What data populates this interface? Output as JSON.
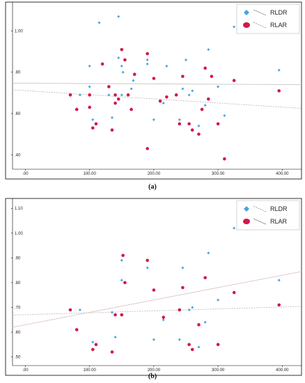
{
  "captions": {
    "a": "(a)",
    "b": "(b)"
  },
  "chart_data": [
    {
      "type": "scatter",
      "title": "",
      "xlabel": "",
      "ylabel": "",
      "xlim": [
        -20,
        430
      ],
      "ylim": [
        0.33,
        1.14
      ],
      "xticks": [
        ".00",
        "100.00",
        "200.00",
        "300.00",
        "400.00"
      ],
      "xtick_values": [
        0,
        100,
        200,
        300,
        400
      ],
      "yticks": [
        ".40",
        ".60",
        ".80",
        "1.00"
      ],
      "ytick_values": [
        0.4,
        0.6,
        0.8,
        1.0
      ],
      "legend": {
        "position": "top-right"
      },
      "series": [
        {
          "name": "RLDR",
          "color": "#4aa3df",
          "marker": "diamond",
          "fit": {
            "y0": 0.747,
            "y430": 0.74,
            "style": "solid",
            "color": "#c9c9c9"
          },
          "points": [
            [
              70,
              0.69
            ],
            [
              85,
              0.69
            ],
            [
              100,
              0.73
            ],
            [
              100,
              0.83
            ],
            [
              105,
              0.57
            ],
            [
              115,
              1.04
            ],
            [
              130,
              0.69
            ],
            [
              135,
              0.58
            ],
            [
              145,
              1.07
            ],
            [
              145,
              0.87
            ],
            [
              150,
              0.69
            ],
            [
              150,
              0.83
            ],
            [
              152,
              0.8
            ],
            [
              165,
              0.72
            ],
            [
              168,
              0.76
            ],
            [
              190,
              0.86
            ],
            [
              190,
              0.84
            ],
            [
              200,
              0.57
            ],
            [
              215,
              0.65
            ],
            [
              220,
              0.83
            ],
            [
              240,
              0.57
            ],
            [
              245,
              0.72
            ],
            [
              250,
              0.86
            ],
            [
              255,
              0.69
            ],
            [
              260,
              0.71
            ],
            [
              270,
              0.54
            ],
            [
              280,
              0.64
            ],
            [
              285,
              0.91
            ],
            [
              300,
              0.73
            ],
            [
              310,
              0.59
            ],
            [
              325,
              1.02
            ],
            [
              395,
              0.81
            ]
          ]
        },
        {
          "name": "RLAR",
          "color": "#d4174a",
          "marker": "circle",
          "fit": {
            "y0": 0.715,
            "y430": 0.625,
            "style": "dashed",
            "color": "#bdbdbd"
          },
          "points": [
            [
              70,
              0.69
            ],
            [
              80,
              0.62
            ],
            [
              100,
              0.69
            ],
            [
              100,
              0.63
            ],
            [
              105,
              0.53
            ],
            [
              110,
              0.55
            ],
            [
              120,
              0.84
            ],
            [
              130,
              0.73
            ],
            [
              135,
              0.52
            ],
            [
              140,
              0.65
            ],
            [
              140,
              0.69
            ],
            [
              145,
              0.67
            ],
            [
              150,
              0.91
            ],
            [
              155,
              0.86
            ],
            [
              160,
              0.69
            ],
            [
              165,
              0.62
            ],
            [
              170,
              0.79
            ],
            [
              190,
              0.89
            ],
            [
              190,
              0.43
            ],
            [
              200,
              0.77
            ],
            [
              210,
              0.66
            ],
            [
              220,
              0.68
            ],
            [
              235,
              0.69
            ],
            [
              240,
              0.55
            ],
            [
              245,
              0.78
            ],
            [
              255,
              0.55
            ],
            [
              260,
              0.52
            ],
            [
              270,
              0.5
            ],
            [
              275,
              0.62
            ],
            [
              280,
              0.82
            ],
            [
              285,
              0.67
            ],
            [
              290,
              0.78
            ],
            [
              300,
              0.55
            ],
            [
              310,
              0.38
            ],
            [
              325,
              0.76
            ],
            [
              395,
              0.71
            ]
          ]
        }
      ]
    },
    {
      "type": "scatter",
      "title": "",
      "xlabel": "",
      "ylabel": "",
      "xlim": [
        -20,
        430
      ],
      "ylim": [
        0.465,
        1.14
      ],
      "xticks": [
        ".00",
        "100.00",
        "200.00",
        "300.00",
        "400.00"
      ],
      "xtick_values": [
        0,
        100,
        200,
        300,
        400
      ],
      "yticks": [
        ".50",
        ".60",
        ".70",
        ".80",
        ".90",
        "1.00",
        "1.10"
      ],
      "ytick_values": [
        0.5,
        0.6,
        0.7,
        0.8,
        0.9,
        1.0,
        1.1
      ],
      "legend": {
        "position": "top-right"
      },
      "series": [
        {
          "name": "RLDR",
          "color": "#4aa3df",
          "marker": "diamond",
          "fit": {
            "y0": 0.669,
            "y430": 0.704,
            "style": "dashed",
            "color": "#bdbdbd"
          },
          "points": [
            [
              70,
              0.69
            ],
            [
              85,
              0.69
            ],
            [
              105,
              0.56
            ],
            [
              135,
              0.68
            ],
            [
              140,
              0.58
            ],
            [
              150,
              0.89
            ],
            [
              150,
              0.81
            ],
            [
              155,
              0.8
            ],
            [
              190,
              0.86
            ],
            [
              200,
              0.57
            ],
            [
              215,
              0.65
            ],
            [
              240,
              0.57
            ],
            [
              245,
              0.86
            ],
            [
              255,
              0.69
            ],
            [
              260,
              0.7
            ],
            [
              270,
              0.54
            ],
            [
              280,
              0.64
            ],
            [
              285,
              0.92
            ],
            [
              300,
              0.73
            ],
            [
              325,
              1.02
            ],
            [
              395,
              0.81
            ]
          ]
        },
        {
          "name": "RLAR",
          "color": "#d4174a",
          "marker": "circle",
          "fit": {
            "y0": 0.62,
            "y430": 0.845,
            "style": "solid",
            "color": "#e0c4c4"
          },
          "points": [
            [
              70,
              0.69
            ],
            [
              80,
              0.61
            ],
            [
              105,
              0.53
            ],
            [
              110,
              0.55
            ],
            [
              135,
              0.52
            ],
            [
              140,
              0.67
            ],
            [
              150,
              0.67
            ],
            [
              152,
              0.91
            ],
            [
              155,
              0.8
            ],
            [
              190,
              0.89
            ],
            [
              200,
              0.77
            ],
            [
              215,
              0.66
            ],
            [
              240,
              0.69
            ],
            [
              245,
              0.78
            ],
            [
              255,
              0.55
            ],
            [
              260,
              0.53
            ],
            [
              270,
              0.63
            ],
            [
              280,
              0.82
            ],
            [
              300,
              0.55
            ],
            [
              325,
              0.76
            ],
            [
              395,
              0.71
            ]
          ]
        }
      ]
    }
  ]
}
